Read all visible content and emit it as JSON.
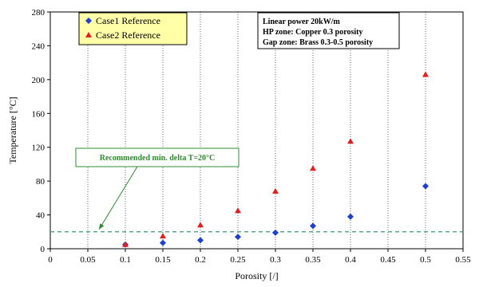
{
  "chart_data": {
    "type": "scatter",
    "xlabel": "Porosity [/]",
    "ylabel": "Temperature [°C]",
    "xlim": [
      0,
      0.55
    ],
    "ylim": [
      0,
      280
    ],
    "x_ticks": [
      "0",
      "0.05",
      "0.1",
      "0.15",
      "0.2",
      "0.25",
      "0.3",
      "0.35",
      "0.4",
      "0.45",
      "0.5",
      "0.55"
    ],
    "y_ticks": [
      "0",
      "40",
      "80",
      "120",
      "160",
      "200",
      "240",
      "280"
    ],
    "grid": "vertical dotted",
    "legend_placement": "top-left",
    "series": [
      {
        "name": "Case1 Reference",
        "marker": "diamond",
        "color": "#1f3fd1",
        "x": [
          0.1,
          0.15,
          0.2,
          0.25,
          0.3,
          0.35,
          0.4,
          0.5
        ],
        "y": [
          5,
          7,
          10,
          14,
          19,
          27,
          38,
          74
        ]
      },
      {
        "name": "Case2 Reference",
        "marker": "triangle",
        "color": "#e02020",
        "x": [
          0.1,
          0.15,
          0.2,
          0.25,
          0.3,
          0.35,
          0.4,
          0.5
        ],
        "y": [
          5,
          15,
          28,
          45,
          68,
          95,
          127,
          206
        ]
      }
    ],
    "reference_line": {
      "y": 20,
      "color": "#3a9a7a"
    },
    "annotations": {
      "info_lines": [
        "Linear power 20kW/m",
        "HP zone: Copper 0.3 porosity",
        "Gap zone: Brass 0.3-0.5 porosity"
      ],
      "recommended": "Recommended min. delta T=20°C",
      "arrow_target": {
        "x": 0.065,
        "y": 20
      }
    }
  }
}
